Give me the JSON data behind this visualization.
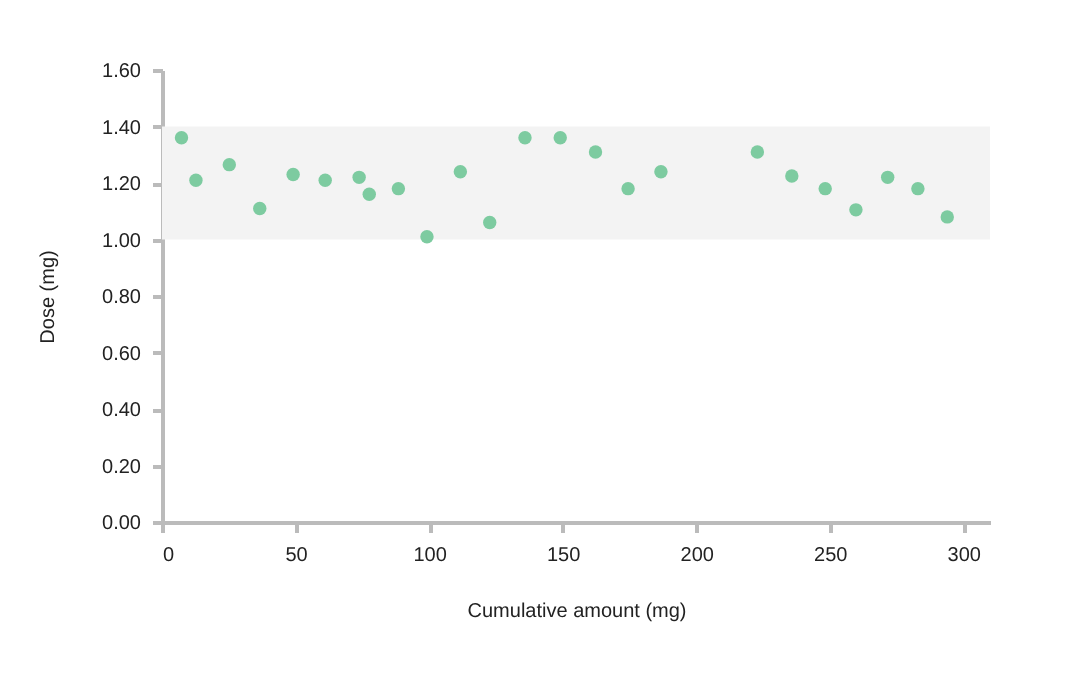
{
  "chart_data": {
    "type": "scatter",
    "xlabel": "Cumulative amount (mg)",
    "ylabel": "Dose (mg)",
    "x": [
      7.3,
      12.7,
      25.2,
      36.6,
      49.1,
      61.1,
      73.8,
      77.6,
      88.5,
      99.2,
      111.7,
      122.7,
      135.9,
      149.1,
      162.3,
      174.5,
      186.8,
      222.9,
      235.8,
      248.3,
      259.8,
      271.7,
      283,
      294
    ],
    "series": [
      {
        "color": "#7dcba0",
        "values": [
          1.36,
          1.21,
          1.265,
          1.11,
          1.23,
          1.21,
          1.22,
          1.16,
          1.18,
          1.01,
          1.24,
          1.06,
          1.36,
          1.36,
          1.31,
          1.18,
          1.24,
          1.31,
          1.225,
          1.18,
          1.105,
          1.22,
          1.18,
          1.08
        ]
      }
    ],
    "xlim": [
      0,
      310
    ],
    "xticks": [
      0,
      50,
      100,
      150,
      200,
      250,
      300
    ],
    "ylim": [
      0,
      1.6
    ],
    "yticks": [
      {
        "value": 0,
        "label": "0.00"
      },
      {
        "value": 0.2,
        "label": "0.20"
      },
      {
        "value": 0.4,
        "label": "0.40"
      },
      {
        "value": 0.6,
        "label": "0.60"
      },
      {
        "value": 0.8,
        "label": "0.80"
      },
      {
        "value": 1.0,
        "label": "1.00"
      },
      {
        "value": 1.2,
        "label": "1.20"
      },
      {
        "value": 1.4,
        "label": "1.40"
      },
      {
        "value": 1.6,
        "label": "1.60"
      }
    ],
    "bands": [
      {
        "axis": "y",
        "from": 1.0,
        "to": 1.4,
        "color": "#f3f3f3"
      }
    ],
    "marker": "circle",
    "grid": false
  }
}
